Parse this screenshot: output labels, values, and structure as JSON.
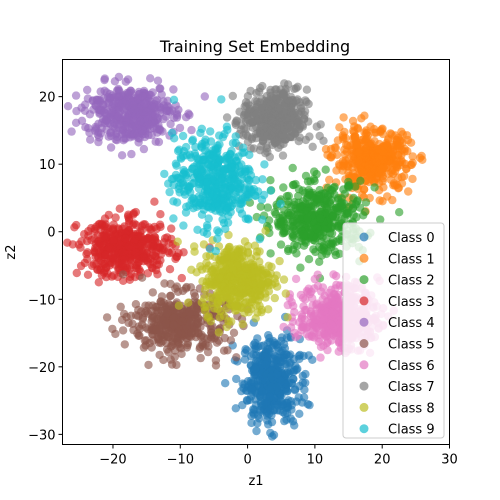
{
  "chart_data": {
    "type": "scatter",
    "title": "Training Set Embedding",
    "xlabel": "z1",
    "ylabel": "z2",
    "xlim": [
      -27.5,
      30
    ],
    "ylim": [
      -31.5,
      25.5
    ],
    "xticks": [
      -20,
      -10,
      0,
      10,
      20,
      30
    ],
    "yticks": [
      -30,
      -20,
      -10,
      0,
      10,
      20
    ],
    "grid": false,
    "legend_position": "lower-right",
    "series": [
      {
        "name": "Class 0",
        "color": "#1f77b4",
        "center": [
          3.5,
          -22.0
        ],
        "spread": [
          2.8,
          4.2
        ],
        "values": []
      },
      {
        "name": "Class 1",
        "color": "#ff7f0e",
        "center": [
          18.5,
          10.5
        ],
        "spread": [
          3.8,
          3.0
        ],
        "values": []
      },
      {
        "name": "Class 2",
        "color": "#2ca02c",
        "center": [
          10.5,
          2.0
        ],
        "spread": [
          4.5,
          3.5
        ],
        "values": []
      },
      {
        "name": "Class 3",
        "color": "#d62728",
        "center": [
          -18.0,
          -2.5
        ],
        "spread": [
          4.6,
          2.8
        ],
        "values": []
      },
      {
        "name": "Class 4",
        "color": "#9467bd",
        "center": [
          -17.5,
          17.5
        ],
        "spread": [
          4.5,
          2.8
        ],
        "values": []
      },
      {
        "name": "Class 5",
        "color": "#8c564b",
        "center": [
          -10.0,
          -13.5
        ],
        "spread": [
          4.8,
          3.0
        ],
        "values": []
      },
      {
        "name": "Class 6",
        "color": "#e377c2",
        "center": [
          13.5,
          -12.5
        ],
        "spread": [
          4.0,
          3.2
        ],
        "values": []
      },
      {
        "name": "Class 7",
        "color": "#7f7f7f",
        "center": [
          4.0,
          16.5
        ],
        "spread": [
          3.2,
          3.0
        ],
        "values": []
      },
      {
        "name": "Class 8",
        "color": "#bcbd22",
        "center": [
          -1.5,
          -7.0
        ],
        "spread": [
          3.5,
          3.5
        ],
        "values": []
      },
      {
        "name": "Class 9",
        "color": "#17becf",
        "center": [
          -5.0,
          7.5
        ],
        "spread": [
          4.0,
          4.5
        ],
        "values": []
      }
    ]
  }
}
